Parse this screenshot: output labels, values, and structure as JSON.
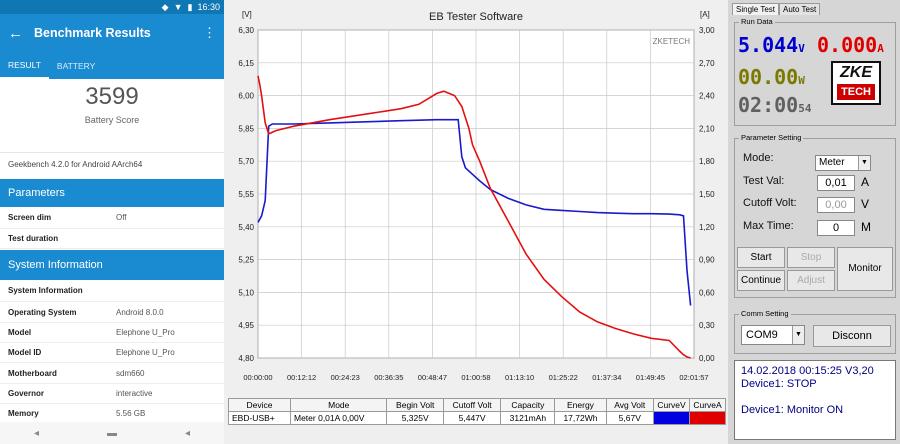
{
  "phone": {
    "status": {
      "time": "16:30"
    },
    "appbar": {
      "title": "Benchmark Results"
    },
    "tabs": [
      "RESULT",
      "BATTERY"
    ],
    "score": {
      "value": "3599",
      "label": "Battery Score"
    },
    "version": "Geekbench 4.2.0 for Android AArch64",
    "parameters_title": "Parameters",
    "parameters": [
      {
        "key": "Screen dim",
        "value": "Off"
      },
      {
        "key": "Test duration",
        "value": ""
      }
    ],
    "sysinfo_title": "System Information",
    "sysinfo_subheader": "System Information",
    "sysinfo": [
      {
        "key": "Operating System",
        "value": "Android 8.0.0"
      },
      {
        "key": "Model",
        "value": "Elephone U_Pro"
      },
      {
        "key": "Model ID",
        "value": "Elephone U_Pro"
      },
      {
        "key": "Motherboard",
        "value": "sdm660"
      },
      {
        "key": "Governor",
        "value": "interactive"
      },
      {
        "key": "Memory",
        "value": "5.56 GB"
      }
    ]
  },
  "app": {
    "tabs": [
      "Single Test",
      "Auto Test"
    ],
    "run_data_label": "Run Data",
    "voltage": "5.044",
    "voltage_unit": "V",
    "current": "0.000",
    "current_unit": "A",
    "power": "00.00",
    "power_unit": "W",
    "time": "02:00",
    "time_sec": "54",
    "logo_top": "ZKE",
    "logo_bottom": "TECH",
    "param_group_label": "Parameter Setting",
    "mode_label": "Mode:",
    "mode_value": "Meter",
    "test_val_label": "Test Val:",
    "test_val": "0,01",
    "test_val_unit": "A",
    "cutoff_label": "Cutoff Volt:",
    "cutoff_val": "0,00",
    "cutoff_unit": "V",
    "maxtime_label": "Max Time:",
    "maxtime_val": "0",
    "maxtime_unit": "M",
    "buttons": {
      "start": "Start",
      "stop": "Stop",
      "continue": "Continue",
      "adjust": "Adjust",
      "monitor": "Monitor"
    },
    "comm_group_label": "Comm Setting",
    "com_port": "COM9",
    "disconnect": "Disconn",
    "log": [
      "14.02.2018 00:15:25  V3,20",
      "Device1: STOP",
      "",
      "Device1: Monitor ON"
    ],
    "colors": {
      "voltage": "#0000d0",
      "current": "#e00000",
      "power": "#7a7a00",
      "time": "#606060"
    }
  },
  "grid": {
    "headers": [
      "Device",
      "Mode",
      "Begin Volt",
      "Cutoff Volt",
      "Capacity",
      "Energy",
      "Avg Volt",
      "CurveV",
      "CurveA"
    ],
    "row": [
      "EBD-USB+",
      "Meter  0,01A  0,00V",
      "5,325V",
      "5,447V",
      "3121mAh",
      "17,72Wh",
      "5,67V",
      "",
      ""
    ]
  },
  "chart_data": {
    "type": "line",
    "title": "EB Tester Software",
    "watermark": "ZKETECH",
    "ylabel_left": "[V]",
    "ylabel_right": "[A]",
    "ylim_left": [
      4.8,
      6.3
    ],
    "ylim_right": [
      0.0,
      3.0
    ],
    "yticks_left": [
      "6,30",
      "6,15",
      "6,00",
      "5,85",
      "5,70",
      "5,55",
      "5,40",
      "5,25",
      "5,10",
      "4,95",
      "4,80"
    ],
    "yticks_right": [
      "3,00",
      "2,70",
      "2,40",
      "2,10",
      "1,80",
      "1,50",
      "1,20",
      "0,90",
      "0,60",
      "0,30",
      "0,00"
    ],
    "xticks": [
      "00:00:00",
      "00:12:12",
      "00:24:23",
      "00:36:35",
      "00:48:47",
      "01:00:58",
      "01:13:10",
      "01:25:22",
      "01:37:34",
      "01:49:45",
      "02:01:57"
    ],
    "grid": true,
    "series": [
      {
        "name": "CurveV",
        "color": "#1a1acc",
        "x_min": [
          0,
          1,
          2,
          3,
          4,
          5,
          10,
          20,
          30,
          40,
          50,
          56,
          57,
          58,
          60,
          62,
          65,
          70,
          75,
          80,
          85,
          90,
          95,
          100,
          105,
          110,
          115,
          118,
          119,
          120,
          121
        ],
        "y": [
          5.42,
          5.45,
          5.52,
          5.86,
          5.87,
          5.87,
          5.87,
          5.875,
          5.88,
          5.885,
          5.89,
          5.89,
          5.72,
          5.67,
          5.64,
          5.61,
          5.57,
          5.53,
          5.5,
          5.48,
          5.475,
          5.47,
          5.465,
          5.462,
          5.46,
          5.46,
          5.458,
          5.455,
          5.45,
          5.2,
          5.04
        ]
      },
      {
        "name": "CurveA",
        "color": "#e41010",
        "x_min": [
          0,
          0.5,
          1,
          2,
          3,
          5,
          10,
          20,
          30,
          40,
          45,
          50,
          52,
          55,
          57,
          59,
          60,
          62,
          65,
          70,
          75,
          80,
          85,
          90,
          95,
          100,
          105,
          110,
          115,
          118,
          119,
          120,
          121
        ],
        "y": [
          2.58,
          2.5,
          2.4,
          2.15,
          2.05,
          2.08,
          2.12,
          2.18,
          2.23,
          2.28,
          2.32,
          2.42,
          2.44,
          2.4,
          2.3,
          2.1,
          1.95,
          1.8,
          1.55,
          1.25,
          0.95,
          0.72,
          0.56,
          0.42,
          0.33,
          0.27,
          0.22,
          0.18,
          0.16,
          0.06,
          0.03,
          0.01,
          0.0
        ]
      }
    ]
  }
}
